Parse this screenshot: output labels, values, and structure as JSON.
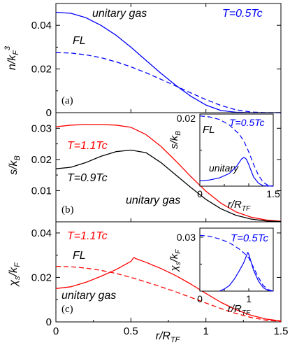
{
  "figure": {
    "colors": {
      "blue": "#0000ff",
      "red": "#ff0000",
      "black": "#000000"
    },
    "x_tick_labels": [
      "0",
      "0.5",
      "1",
      "1.5"
    ],
    "xlabel_main": "r/R",
    "xlabel_sub": "TF"
  },
  "chart_data": [
    {
      "id": "a",
      "type": "line",
      "panel_label": "(a)",
      "ylabel_main": "n/k",
      "ylabel_sub": "F",
      "ylabel_sup": "3",
      "xlim": [
        0,
        1.5
      ],
      "ylim": [
        0,
        0.05
      ],
      "y_tick_labels": [
        "0",
        "0.02",
        "0.04"
      ],
      "annotations": {
        "unitary": "unitary gas",
        "fl": "FL",
        "temp": "T=0.5Tc"
      },
      "series": [
        {
          "style": "solid",
          "color": "blue",
          "x": [
            0,
            0.1,
            0.2,
            0.3,
            0.4,
            0.5,
            0.6,
            0.7,
            0.8,
            0.9,
            1.0,
            1.1,
            1.2,
            1.3,
            1.4,
            1.5
          ],
          "y": [
            0.046,
            0.0455,
            0.0435,
            0.04,
            0.0355,
            0.03,
            0.024,
            0.018,
            0.0125,
            0.0075,
            0.0035,
            0.001,
            0.0002,
            0,
            0,
            0
          ]
        },
        {
          "style": "dashed",
          "color": "blue",
          "x": [
            0,
            0.1,
            0.2,
            0.3,
            0.4,
            0.5,
            0.6,
            0.7,
            0.8,
            0.9,
            1.0,
            1.1,
            1.2,
            1.3,
            1.4,
            1.5
          ],
          "y": [
            0.0275,
            0.0273,
            0.0265,
            0.0252,
            0.0233,
            0.021,
            0.0183,
            0.0153,
            0.0122,
            0.009,
            0.006,
            0.0033,
            0.0013,
            0.0003,
            0,
            0
          ]
        }
      ]
    },
    {
      "id": "b",
      "type": "line",
      "panel_label": "(b)",
      "ylabel_main": "s/k",
      "ylabel_sub": "B",
      "xlim": [
        0,
        1.5
      ],
      "ylim": [
        0,
        0.035
      ],
      "y_tick_labels": [
        "0.01",
        "0.02",
        "0.03"
      ],
      "annotations": {
        "t_red": "T=1.1Tc",
        "t_black": "T=0.9Tc",
        "unitary": "unitary gas"
      },
      "series": [
        {
          "style": "solid",
          "color": "red",
          "x": [
            0,
            0.1,
            0.2,
            0.3,
            0.4,
            0.5,
            0.6,
            0.7,
            0.8,
            0.9,
            1.0,
            1.1,
            1.2,
            1.3,
            1.4,
            1.5
          ],
          "y": [
            0.0305,
            0.031,
            0.0312,
            0.0312,
            0.031,
            0.0303,
            0.028,
            0.0242,
            0.0195,
            0.0145,
            0.0098,
            0.006,
            0.0032,
            0.0015,
            0.0006,
            0.0002
          ]
        },
        {
          "style": "solid",
          "color": "black",
          "x": [
            0,
            0.1,
            0.2,
            0.3,
            0.4,
            0.5,
            0.6,
            0.7,
            0.8,
            0.9,
            1.0,
            1.1,
            1.2,
            1.3,
            1.4,
            1.5
          ],
          "y": [
            0.017,
            0.0175,
            0.019,
            0.021,
            0.0225,
            0.023,
            0.0222,
            0.019,
            0.015,
            0.011,
            0.0072,
            0.0042,
            0.0021,
            0.0009,
            0.0003,
            0.0001
          ]
        }
      ]
    },
    {
      "id": "b-inset",
      "type": "line",
      "ylabel_main": "s/k",
      "ylabel_sub": "B",
      "xlabel_main": "r/R",
      "xlabel_sub": "TF",
      "xlim": [
        0,
        1.5
      ],
      "ylim": [
        0,
        0.02
      ],
      "x_tick_labels": [
        "0",
        "1.5"
      ],
      "y_tick_labels": [
        "0.02"
      ],
      "annotations": {
        "fl": "FL",
        "temp": "T=0.5Tc",
        "unitary": "unitary"
      },
      "series": [
        {
          "style": "dashed",
          "color": "blue",
          "x": [
            0,
            0.2,
            0.4,
            0.6,
            0.8,
            0.9,
            1.0,
            1.1,
            1.2,
            1.3,
            1.4,
            1.5
          ],
          "y": [
            0.0195,
            0.0192,
            0.0185,
            0.017,
            0.0145,
            0.0125,
            0.0095,
            0.006,
            0.003,
            0.001,
            0.0002,
            0
          ]
        },
        {
          "style": "solid",
          "color": "blue",
          "x": [
            0,
            0.2,
            0.4,
            0.6,
            0.75,
            0.85,
            0.9,
            0.95,
            1.0,
            1.05,
            1.1,
            1.2,
            1.3,
            1.5
          ],
          "y": [
            0.0015,
            0.0017,
            0.0023,
            0.0035,
            0.0055,
            0.0075,
            0.008,
            0.0075,
            0.006,
            0.0042,
            0.0025,
            0.0008,
            0.0001,
            0
          ]
        }
      ]
    },
    {
      "id": "c",
      "type": "line",
      "panel_label": "(c)",
      "ylabel_main": "χ",
      "ylabel_sub": "s",
      "ylabel_tail": "/k",
      "ylabel_sub2": "F",
      "xlim": [
        0,
        1.5
      ],
      "ylim": [
        0,
        0.045
      ],
      "y_tick_labels": [
        "0",
        "0.02",
        "0.04"
      ],
      "annotations": {
        "t_red": "T=1.1Tc",
        "fl": "FL",
        "unitary": "unitary gas"
      },
      "series": [
        {
          "style": "dashed",
          "color": "red",
          "x": [
            0,
            0.1,
            0.2,
            0.3,
            0.4,
            0.5,
            0.6,
            0.7,
            0.8,
            0.9,
            1.0,
            1.1,
            1.2,
            1.3,
            1.4,
            1.5
          ],
          "y": [
            0.025,
            0.0248,
            0.0242,
            0.0232,
            0.0218,
            0.02,
            0.018,
            0.0158,
            0.0135,
            0.011,
            0.0085,
            0.006,
            0.0038,
            0.002,
            0.0008,
            0.0002
          ]
        },
        {
          "style": "solid",
          "color": "red",
          "x": [
            0,
            0.1,
            0.2,
            0.3,
            0.4,
            0.5,
            0.52,
            0.53,
            0.6,
            0.7,
            0.8,
            0.9,
            1.0,
            1.1,
            1.2,
            1.3,
            1.4,
            1.5
          ],
          "y": [
            0.015,
            0.0158,
            0.0178,
            0.0205,
            0.0235,
            0.0272,
            0.029,
            0.0285,
            0.0268,
            0.024,
            0.0208,
            0.017,
            0.0128,
            0.0088,
            0.0055,
            0.003,
            0.0013,
            0.0004
          ]
        }
      ]
    },
    {
      "id": "c-inset",
      "type": "line",
      "ylabel_main": "χ",
      "ylabel_sub": "s",
      "ylabel_tail": "/k",
      "ylabel_sub2": "F",
      "xlabel_main": "r/R",
      "xlabel_sub": "TF",
      "xlim": [
        0,
        1.5
      ],
      "ylim": [
        0,
        0.035
      ],
      "x_tick_labels": [
        "0",
        "1"
      ],
      "y_tick_labels": [
        "0.03"
      ],
      "annotations": {
        "temp": "T=0.5Tc"
      },
      "series": [
        {
          "style": "dashed",
          "color": "blue",
          "x": [
            0,
            0.2,
            0.4,
            0.6,
            0.8,
            0.9,
            1.0,
            1.1,
            1.2,
            1.3,
            1.4,
            1.5
          ],
          "y": [
            0.031,
            0.0305,
            0.029,
            0.027,
            0.0235,
            0.0212,
            0.0185,
            0.013,
            0.0075,
            0.003,
            0.0008,
            0
          ]
        },
        {
          "style": "solid",
          "color": "blue",
          "x": [
            0.4,
            0.5,
            0.6,
            0.7,
            0.8,
            0.9,
            0.95,
            0.98,
            1.0,
            1.05,
            1.1,
            1.2,
            1.3,
            1.4,
            1.5
          ],
          "y": [
            0.0,
            0.0012,
            0.003,
            0.0065,
            0.011,
            0.016,
            0.0195,
            0.0215,
            0.0205,
            0.016,
            0.0115,
            0.0055,
            0.0018,
            0.0003,
            0
          ]
        }
      ]
    }
  ]
}
